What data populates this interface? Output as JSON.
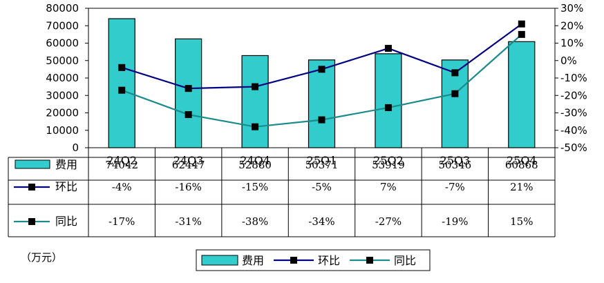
{
  "chart_data": {
    "type": "bar+line",
    "categories": [
      "24Q2",
      "24Q3",
      "24Q4",
      "25Q1",
      "25Q2",
      "25Q3",
      "25Q4"
    ],
    "y_left": {
      "min": 0,
      "max": 80000,
      "step": 10000,
      "ticks": [
        "80000",
        "70000",
        "60000",
        "50000",
        "40000",
        "30000",
        "20000",
        "10000",
        "0"
      ]
    },
    "y_right": {
      "min": -50,
      "max": 30,
      "step": 10,
      "ticks": [
        "30%",
        "20%",
        "10%",
        "0%",
        "-10%",
        "-20%",
        "-30%",
        "-40%",
        "-50%"
      ]
    },
    "series": [
      {
        "name": "费用",
        "kind": "bar",
        "axis": "left",
        "values": [
          74042,
          62447,
          52880,
          50371,
          53919,
          50346,
          60868
        ],
        "labels": [
          "74042",
          "62447",
          "52880",
          "50371",
          "53919",
          "50346",
          "60868"
        ],
        "color": "#33CCCC"
      },
      {
        "name": "环比",
        "kind": "line",
        "axis": "right",
        "values": [
          -4,
          -16,
          -15,
          -5,
          7,
          -7,
          21
        ],
        "labels": [
          "-4%",
          "-16%",
          "-15%",
          "-5%",
          "7%",
          "-7%",
          "21%"
        ],
        "color": "#000080"
      },
      {
        "name": "同比",
        "kind": "line",
        "axis": "right",
        "values": [
          -17,
          -31,
          -38,
          -34,
          -27,
          -19,
          15
        ],
        "labels": [
          "-17%",
          "-31%",
          "-38%",
          "-34%",
          "-27%",
          "-19%",
          "15%"
        ],
        "color": "#1A8A8A"
      }
    ],
    "unit": "（万元）",
    "legend_position": "bottom"
  }
}
